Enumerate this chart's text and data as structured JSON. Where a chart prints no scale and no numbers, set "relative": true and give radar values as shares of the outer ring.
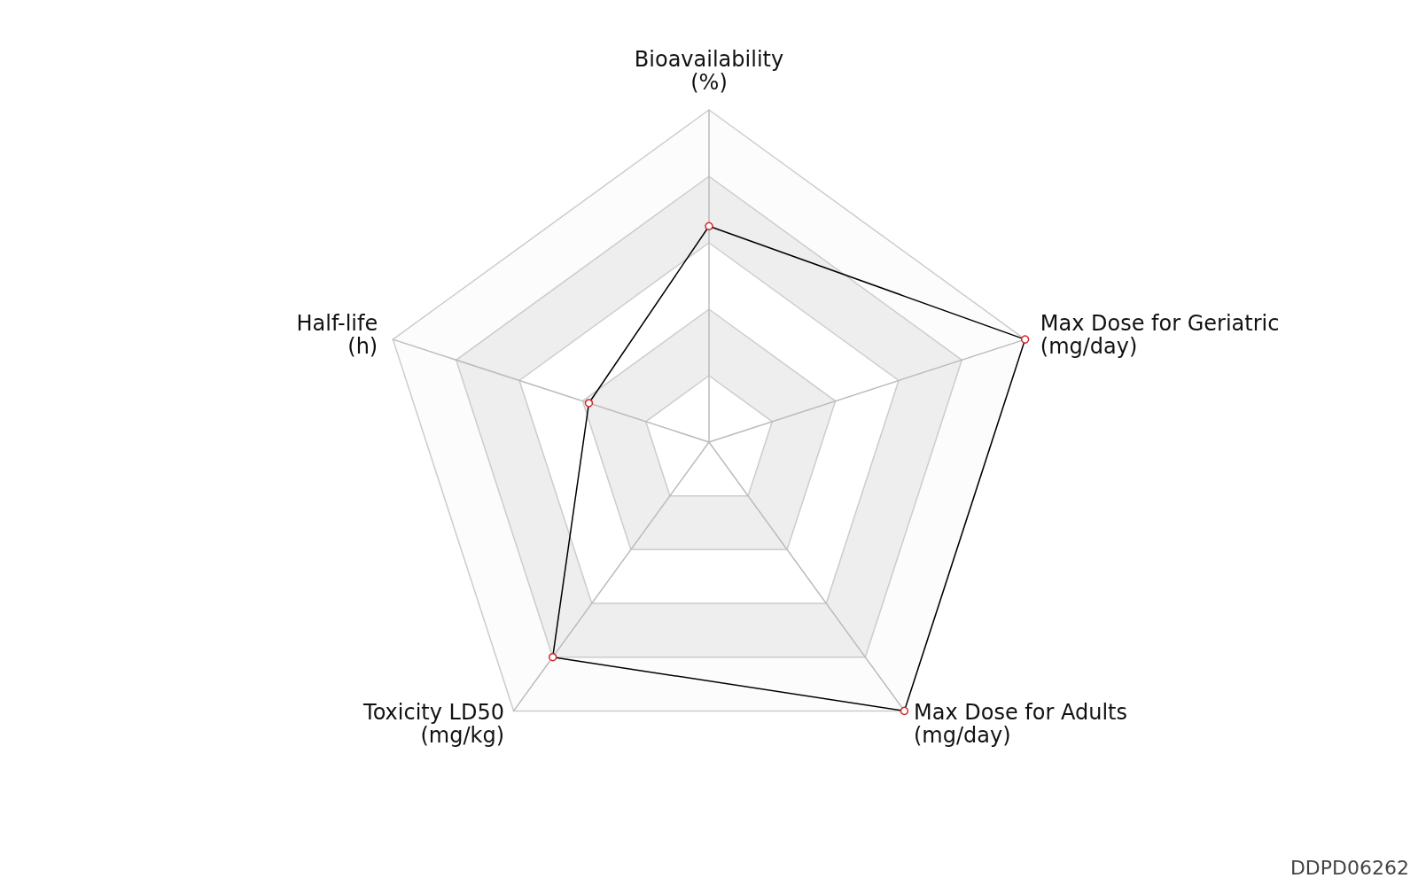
{
  "chart_data": {
    "type": "radar",
    "relative": true,
    "categories": [
      "Bioavailability\n(%)",
      "Max Dose for Geriatric\n(mg/day)",
      "Max Dose for Adults\n(mg/day)",
      "Toxicity LD50\n(mg/kg)",
      "Half-life\n(h)"
    ],
    "series": [
      {
        "color": "#000000",
        "values": [
          0.65,
          1,
          1,
          0.8,
          0.38
        ]
      }
    ],
    "marker": "circle",
    "annotations": [
      "DDPD06262"
    ]
  }
}
